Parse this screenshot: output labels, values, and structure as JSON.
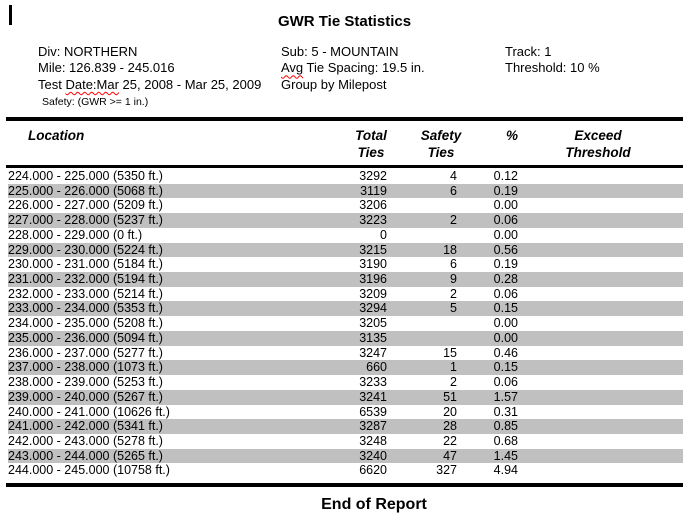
{
  "report": {
    "title": "GWR Tie Statistics",
    "end_label": "End of Report"
  },
  "info": {
    "division": "Div: NORTHERN",
    "mile": "Mile: 126.839 - 245.016",
    "test_date_prefix": "Test ",
    "test_date_flagged": "Date:Mar",
    "test_date_suffix": " 25, 2008 - Mar 25, 2009",
    "safety": "Safety: (GWR >= 1 in.)",
    "sub": "Sub: 5 - MOUNTAIN",
    "avg_flagged": "Avg",
    "avg_suffix": " Tie Spacing: 19.5 in.",
    "group_by": "Group by Milepost",
    "track": "Track: 1",
    "threshold": "Threshold: 10 %"
  },
  "table": {
    "columns": [
      "Location",
      "Total Ties",
      "Safety Ties",
      "%",
      "Exceed Threshold"
    ],
    "header": {
      "location": "Location",
      "total_line1": "Total",
      "total_line2": "Ties",
      "safety_line1": "Safety",
      "safety_line2": "Ties",
      "percent": "%",
      "exceed_line1": "Exceed",
      "exceed_line2": "Threshold"
    },
    "rows": [
      {
        "location": "224.000 - 225.000 (5350 ft.)",
        "total": "3292",
        "safety": "4",
        "percent": "0.12",
        "exceed": ""
      },
      {
        "location": "225.000 - 226.000 (5068 ft.)",
        "total": "3119",
        "safety": "6",
        "percent": "0.19",
        "exceed": ""
      },
      {
        "location": "226.000 - 227.000 (5209 ft.)",
        "total": "3206",
        "safety": "",
        "percent": "0.00",
        "exceed": ""
      },
      {
        "location": "227.000 - 228.000 (5237 ft.)",
        "total": "3223",
        "safety": "2",
        "percent": "0.06",
        "exceed": ""
      },
      {
        "location": "228.000 - 229.000 (0 ft.)",
        "total": "0",
        "safety": "",
        "percent": "0.00",
        "exceed": ""
      },
      {
        "location": "229.000 - 230.000 (5224 ft.)",
        "total": "3215",
        "safety": "18",
        "percent": "0.56",
        "exceed": ""
      },
      {
        "location": "230.000 - 231.000 (5184 ft.)",
        "total": "3190",
        "safety": "6",
        "percent": "0.19",
        "exceed": ""
      },
      {
        "location": "231.000 - 232.000 (5194 ft.)",
        "total": "3196",
        "safety": "9",
        "percent": "0.28",
        "exceed": ""
      },
      {
        "location": "232.000 - 233.000 (5214 ft.)",
        "total": "3209",
        "safety": "2",
        "percent": "0.06",
        "exceed": ""
      },
      {
        "location": "233.000 - 234.000 (5353 ft.)",
        "total": "3294",
        "safety": "5",
        "percent": "0.15",
        "exceed": ""
      },
      {
        "location": "234.000 - 235.000 (5208 ft.)",
        "total": "3205",
        "safety": "",
        "percent": "0.00",
        "exceed": ""
      },
      {
        "location": "235.000 - 236.000 (5094 ft.)",
        "total": "3135",
        "safety": "",
        "percent": "0.00",
        "exceed": ""
      },
      {
        "location": "236.000 - 237.000 (5277 ft.)",
        "total": "3247",
        "safety": "15",
        "percent": "0.46",
        "exceed": ""
      },
      {
        "location": "237.000 - 238.000 (1073 ft.)",
        "total": "660",
        "safety": "1",
        "percent": "0.15",
        "exceed": ""
      },
      {
        "location": "238.000 - 239.000 (5253 ft.)",
        "total": "3233",
        "safety": "2",
        "percent": "0.06",
        "exceed": ""
      },
      {
        "location": "239.000 - 240.000 (5267 ft.)",
        "total": "3241",
        "safety": "51",
        "percent": "1.57",
        "exceed": ""
      },
      {
        "location": "240.000 - 241.000 (10626 ft.)",
        "total": "6539",
        "safety": "20",
        "percent": "0.31",
        "exceed": ""
      },
      {
        "location": "241.000 - 242.000 (5341 ft.)",
        "total": "3287",
        "safety": "28",
        "percent": "0.85",
        "exceed": ""
      },
      {
        "location": "242.000 - 243.000 (5278 ft.)",
        "total": "3248",
        "safety": "22",
        "percent": "0.68",
        "exceed": ""
      },
      {
        "location": "243.000 - 244.000 (5265 ft.)",
        "total": "3240",
        "safety": "47",
        "percent": "1.45",
        "exceed": ""
      },
      {
        "location": "244.000 - 245.000 (10758 ft.)",
        "total": "6620",
        "safety": "327",
        "percent": "4.94",
        "exceed": ""
      }
    ]
  },
  "colors": {
    "row_stripe": "#c0c0c0",
    "spellcheck_squiggle": "#ff0000",
    "text": "#000000",
    "background": "#ffffff"
  }
}
